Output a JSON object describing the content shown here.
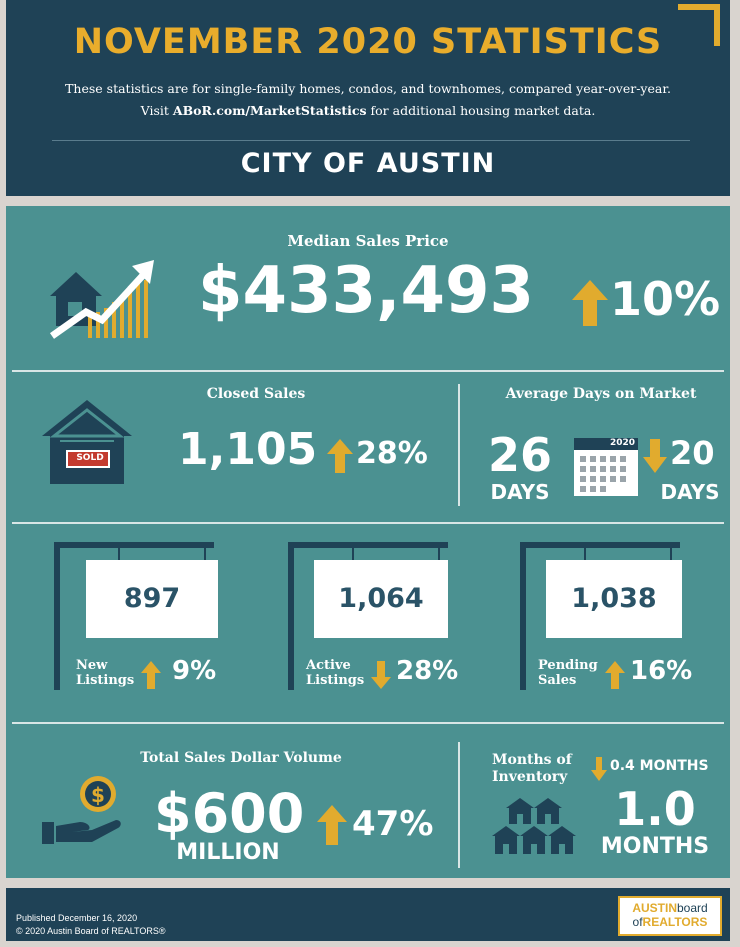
{
  "header": {
    "title": "NOVEMBER 2020 STATISTICS",
    "subtitle_line1": "These statistics are for single-family homes, condos, and townhomes, compared year-over-year.",
    "subtitle_line2_prefix": "Visit",
    "subtitle_link": "ABoR.com/MarketStatistics",
    "subtitle_line2_suffix": "for additional housing market data.",
    "city": "CITY OF AUSTIN"
  },
  "median": {
    "label": "Median Sales Price",
    "value": "$433,493",
    "change": "10%",
    "direction": "up"
  },
  "closed": {
    "label": "Closed Sales",
    "value": "1,105",
    "change": "28%",
    "direction": "up",
    "sign": "SOLD"
  },
  "days": {
    "label": "Average Days on Market",
    "value": "26",
    "unit": "DAYS",
    "calendar_year": "2020",
    "change": "20",
    "change_unit": "DAYS",
    "direction": "down"
  },
  "listings": [
    {
      "value": "897",
      "label_l1": "New",
      "label_l2": "Listings",
      "change": "9%",
      "direction": "up"
    },
    {
      "value": "1,064",
      "label_l1": "Active",
      "label_l2": "Listings",
      "change": "28%",
      "direction": "down"
    },
    {
      "value": "1,038",
      "label_l1": "Pending",
      "label_l2": "Sales",
      "change": "16%",
      "direction": "up"
    }
  ],
  "volume": {
    "label": "Total Sales Dollar Volume",
    "value": "$600",
    "unit": "MILLION",
    "change": "47%",
    "direction": "up"
  },
  "inventory": {
    "label_l1": "Months of",
    "label_l2": "Inventory",
    "change": "0.4 MONTHS",
    "direction": "down",
    "value": "1.0",
    "unit": "MONTHS"
  },
  "footer": {
    "published": "Published December 16, 2020",
    "copyright": "© 2020 Austin Board of REALTORS®",
    "logo_austin": "AUSTIN",
    "logo_board": "board",
    "logo_of": "of",
    "logo_realtors": "REALTORS"
  },
  "colors": {
    "navy": "#1f4256",
    "teal": "#4b9191",
    "gold": "#e1ab2e",
    "white": "#ffffff"
  }
}
